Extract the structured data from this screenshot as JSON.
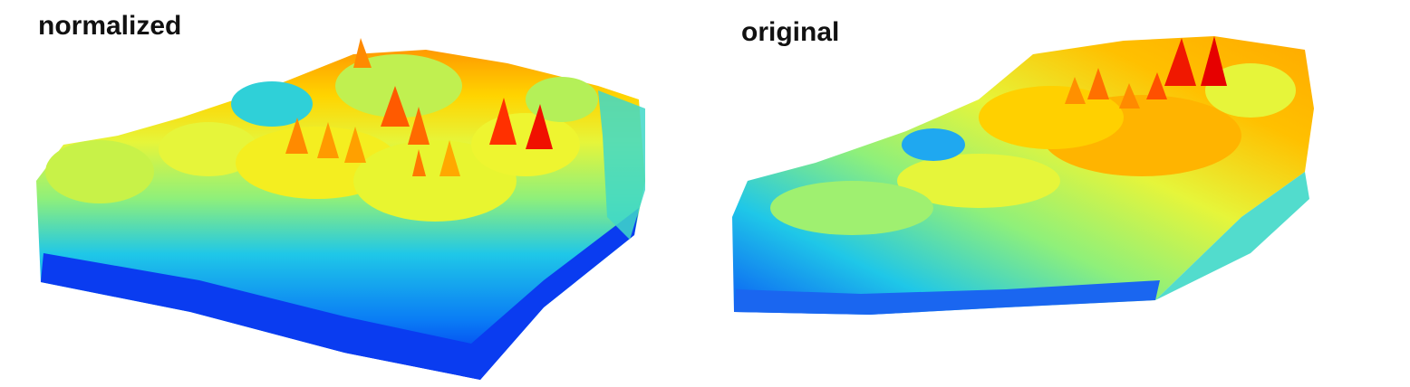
{
  "panels": [
    {
      "title": "normalized",
      "colormap": [
        "#0022ee",
        "#0a7cf5",
        "#1fc7e8",
        "#4fe0b0",
        "#9ff070",
        "#e6f53a",
        "#ffd400",
        "#ff9a00",
        "#ff4a00",
        "#e60000"
      ]
    },
    {
      "title": "original",
      "colormap": [
        "#0022ee",
        "#0a7cf5",
        "#1fc7e8",
        "#4fe0b0",
        "#9ff070",
        "#e6f53a",
        "#ffd400",
        "#ffaa00",
        "#ff7a00",
        "#e60000"
      ]
    }
  ]
}
